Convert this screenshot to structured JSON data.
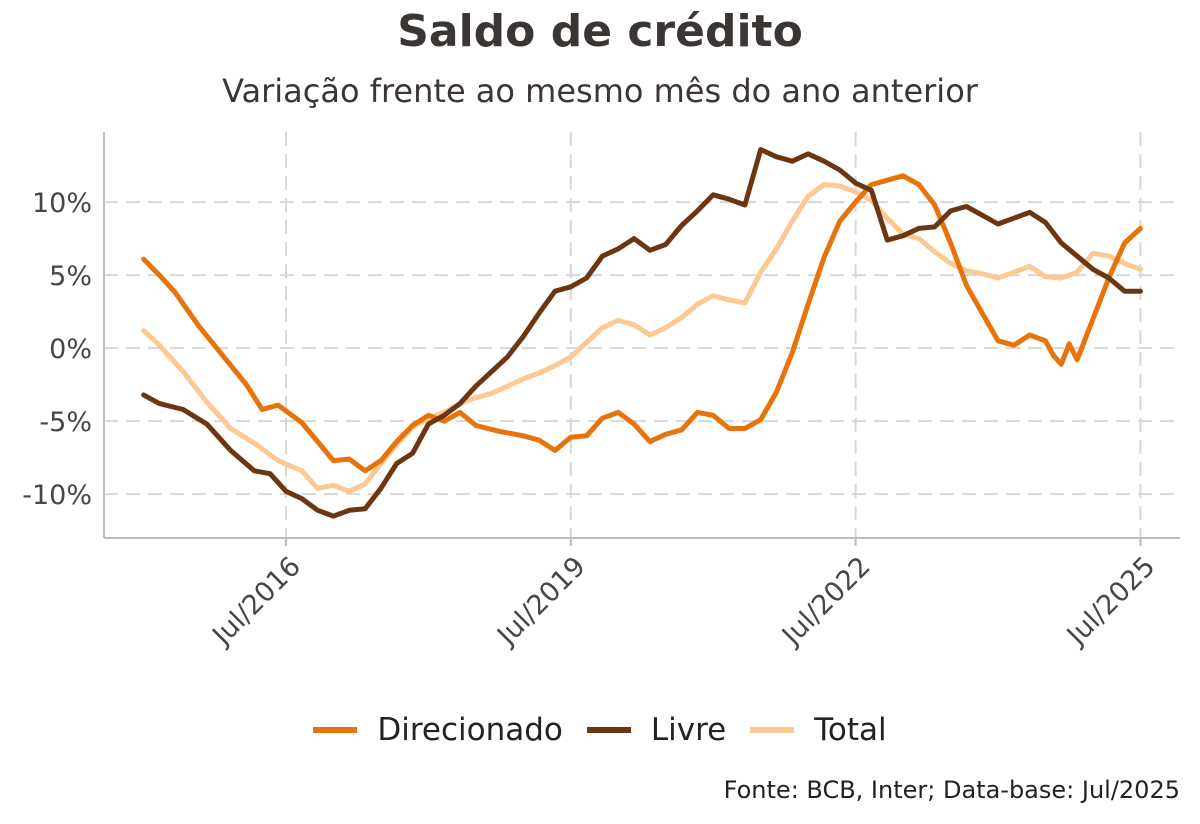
{
  "chart_data": {
    "type": "line",
    "title": "Saldo de crédito",
    "subtitle": "Variação frente ao mesmo mês do ano anterior",
    "x_start": "2015-01",
    "x_end": "2025-07",
    "x_tick_labels": [
      "Jul/2016",
      "Jul/2019",
      "Jul/2022",
      "Jul/2025"
    ],
    "x_tick_dates": [
      "2016-07",
      "2019-07",
      "2022-07",
      "2025-07"
    ],
    "y_tick_labels": [
      "10%",
      "5%",
      "0%",
      "-5%",
      "-10%"
    ],
    "y_tick_values": [
      10,
      5,
      0,
      -5,
      -10
    ],
    "ylim": [
      -13,
      14.8
    ],
    "xlim": [
      "2014-08",
      "2025-12"
    ],
    "grid": true,
    "legend_position": "bottom",
    "series": [
      {
        "name": "Direcionado",
        "color": "#e8730a",
        "points": [
          [
            "2015-01",
            6.1
          ],
          [
            "2015-03",
            5.0
          ],
          [
            "2015-05",
            3.8
          ],
          [
            "2015-08",
            1.5
          ],
          [
            "2015-11",
            -0.5
          ],
          [
            "2016-02",
            -2.5
          ],
          [
            "2016-04",
            -4.2
          ],
          [
            "2016-06",
            -3.9
          ],
          [
            "2016-09",
            -5.1
          ],
          [
            "2016-11",
            -6.4
          ],
          [
            "2017-01",
            -7.7
          ],
          [
            "2017-03",
            -7.6
          ],
          [
            "2017-05",
            -8.4
          ],
          [
            "2017-07",
            -7.7
          ],
          [
            "2017-09",
            -6.4
          ],
          [
            "2017-11",
            -5.3
          ],
          [
            "2018-01",
            -4.6
          ],
          [
            "2018-03",
            -5.0
          ],
          [
            "2018-05",
            -4.4
          ],
          [
            "2018-07",
            -5.3
          ],
          [
            "2018-10",
            -5.7
          ],
          [
            "2019-01",
            -6.0
          ],
          [
            "2019-03",
            -6.3
          ],
          [
            "2019-05",
            -7.0
          ],
          [
            "2019-07",
            -6.1
          ],
          [
            "2019-09",
            -6.0
          ],
          [
            "2019-11",
            -4.8
          ],
          [
            "2020-01",
            -4.4
          ],
          [
            "2020-03",
            -5.2
          ],
          [
            "2020-05",
            -6.4
          ],
          [
            "2020-07",
            -5.9
          ],
          [
            "2020-09",
            -5.6
          ],
          [
            "2020-11",
            -4.4
          ],
          [
            "2021-01",
            -4.6
          ],
          [
            "2021-03",
            -5.5
          ],
          [
            "2021-05",
            -5.5
          ],
          [
            "2021-07",
            -4.9
          ],
          [
            "2021-09",
            -3.0
          ],
          [
            "2021-11",
            -0.3
          ],
          [
            "2022-01",
            3.0
          ],
          [
            "2022-03",
            6.2
          ],
          [
            "2022-05",
            8.7
          ],
          [
            "2022-07",
            10.0
          ],
          [
            "2022-09",
            11.2
          ],
          [
            "2022-11",
            11.5
          ],
          [
            "2023-01",
            11.8
          ],
          [
            "2023-03",
            11.2
          ],
          [
            "2023-05",
            9.8
          ],
          [
            "2023-07",
            7.2
          ],
          [
            "2023-09",
            4.3
          ],
          [
            "2023-11",
            2.4
          ],
          [
            "2024-01",
            0.5
          ],
          [
            "2024-03",
            0.2
          ],
          [
            "2024-05",
            0.9
          ],
          [
            "2024-07",
            0.5
          ],
          [
            "2024-08",
            -0.5
          ],
          [
            "2024-09",
            -1.1
          ],
          [
            "2024-10",
            0.3
          ],
          [
            "2024-11",
            -0.8
          ],
          [
            "2025-01",
            2.0
          ],
          [
            "2025-03",
            4.8
          ],
          [
            "2025-05",
            7.2
          ],
          [
            "2025-07",
            8.2
          ]
        ]
      },
      {
        "name": "Livre",
        "color": "#6b3610",
        "points": [
          [
            "2015-01",
            -3.2
          ],
          [
            "2015-03",
            -3.8
          ],
          [
            "2015-06",
            -4.2
          ],
          [
            "2015-09",
            -5.2
          ],
          [
            "2015-12",
            -7.0
          ],
          [
            "2016-03",
            -8.4
          ],
          [
            "2016-05",
            -8.6
          ],
          [
            "2016-07",
            -9.8
          ],
          [
            "2016-09",
            -10.3
          ],
          [
            "2016-11",
            -11.1
          ],
          [
            "2017-01",
            -11.5
          ],
          [
            "2017-03",
            -11.1
          ],
          [
            "2017-05",
            -11.0
          ],
          [
            "2017-07",
            -9.6
          ],
          [
            "2017-09",
            -7.9
          ],
          [
            "2017-11",
            -7.2
          ],
          [
            "2018-01",
            -5.2
          ],
          [
            "2018-03",
            -4.6
          ],
          [
            "2018-05",
            -3.8
          ],
          [
            "2018-07",
            -2.6
          ],
          [
            "2018-09",
            -1.6
          ],
          [
            "2018-11",
            -0.6
          ],
          [
            "2019-01",
            0.8
          ],
          [
            "2019-03",
            2.4
          ],
          [
            "2019-05",
            3.9
          ],
          [
            "2019-07",
            4.2
          ],
          [
            "2019-09",
            4.8
          ],
          [
            "2019-11",
            6.3
          ],
          [
            "2020-01",
            6.8
          ],
          [
            "2020-03",
            7.5
          ],
          [
            "2020-05",
            6.7
          ],
          [
            "2020-07",
            7.1
          ],
          [
            "2020-09",
            8.4
          ],
          [
            "2020-11",
            9.4
          ],
          [
            "2021-01",
            10.5
          ],
          [
            "2021-03",
            10.2
          ],
          [
            "2021-05",
            9.8
          ],
          [
            "2021-07",
            13.6
          ],
          [
            "2021-09",
            13.1
          ],
          [
            "2021-11",
            12.8
          ],
          [
            "2022-01",
            13.3
          ],
          [
            "2022-03",
            12.8
          ],
          [
            "2022-05",
            12.2
          ],
          [
            "2022-07",
            11.3
          ],
          [
            "2022-09",
            10.8
          ],
          [
            "2022-11",
            7.4
          ],
          [
            "2023-01",
            7.7
          ],
          [
            "2023-03",
            8.2
          ],
          [
            "2023-05",
            8.3
          ],
          [
            "2023-07",
            9.4
          ],
          [
            "2023-09",
            9.7
          ],
          [
            "2023-11",
            9.1
          ],
          [
            "2024-01",
            8.5
          ],
          [
            "2024-03",
            8.9
          ],
          [
            "2024-05",
            9.3
          ],
          [
            "2024-07",
            8.6
          ],
          [
            "2024-09",
            7.2
          ],
          [
            "2024-11",
            6.3
          ],
          [
            "2025-01",
            5.4
          ],
          [
            "2025-03",
            4.8
          ],
          [
            "2025-05",
            3.9
          ],
          [
            "2025-07",
            3.9
          ]
        ]
      },
      {
        "name": "Total",
        "color": "#fdc891",
        "points": [
          [
            "2015-01",
            1.2
          ],
          [
            "2015-03",
            0.2
          ],
          [
            "2015-06",
            -1.6
          ],
          [
            "2015-09",
            -3.7
          ],
          [
            "2015-12",
            -5.5
          ],
          [
            "2016-03",
            -6.5
          ],
          [
            "2016-06",
            -7.7
          ],
          [
            "2016-09",
            -8.4
          ],
          [
            "2016-11",
            -9.6
          ],
          [
            "2017-01",
            -9.4
          ],
          [
            "2017-03",
            -9.8
          ],
          [
            "2017-05",
            -9.3
          ],
          [
            "2017-07",
            -7.9
          ],
          [
            "2017-09",
            -6.6
          ],
          [
            "2017-11",
            -5.4
          ],
          [
            "2018-01",
            -4.8
          ],
          [
            "2018-03",
            -4.4
          ],
          [
            "2018-05",
            -3.8
          ],
          [
            "2018-07",
            -3.4
          ],
          [
            "2018-09",
            -3.1
          ],
          [
            "2018-11",
            -2.6
          ],
          [
            "2019-01",
            -2.1
          ],
          [
            "2019-03",
            -1.7
          ],
          [
            "2019-05",
            -1.2
          ],
          [
            "2019-07",
            -0.6
          ],
          [
            "2019-09",
            0.4
          ],
          [
            "2019-11",
            1.4
          ],
          [
            "2020-01",
            1.9
          ],
          [
            "2020-03",
            1.6
          ],
          [
            "2020-05",
            0.9
          ],
          [
            "2020-07",
            1.4
          ],
          [
            "2020-09",
            2.1
          ],
          [
            "2020-11",
            3.0
          ],
          [
            "2021-01",
            3.6
          ],
          [
            "2021-03",
            3.3
          ],
          [
            "2021-05",
            3.1
          ],
          [
            "2021-07",
            5.2
          ],
          [
            "2021-09",
            6.8
          ],
          [
            "2021-11",
            8.7
          ],
          [
            "2022-01",
            10.4
          ],
          [
            "2022-03",
            11.2
          ],
          [
            "2022-05",
            11.1
          ],
          [
            "2022-07",
            10.7
          ],
          [
            "2022-09",
            10.1
          ],
          [
            "2022-11",
            8.9
          ],
          [
            "2023-01",
            7.8
          ],
          [
            "2023-03",
            7.5
          ],
          [
            "2023-05",
            6.6
          ],
          [
            "2023-07",
            5.8
          ],
          [
            "2023-09",
            5.3
          ],
          [
            "2023-11",
            5.1
          ],
          [
            "2024-01",
            4.8
          ],
          [
            "2024-03",
            5.2
          ],
          [
            "2024-05",
            5.6
          ],
          [
            "2024-07",
            4.9
          ],
          [
            "2024-09",
            4.8
          ],
          [
            "2024-11",
            5.2
          ],
          [
            "2025-01",
            6.5
          ],
          [
            "2025-03",
            6.3
          ],
          [
            "2025-05",
            5.8
          ],
          [
            "2025-07",
            5.4
          ]
        ]
      }
    ]
  },
  "legend_items": [
    "Direcionado",
    "Livre",
    "Total"
  ],
  "source_note": "Fonte: BCB, Inter; Data-base: Jul/2025"
}
